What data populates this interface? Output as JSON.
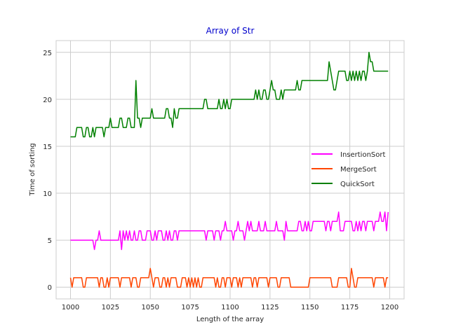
{
  "chart_data": {
    "type": "line",
    "title": "Array of Str",
    "xlabel": "Length of the array",
    "ylabel": "Time of sorting",
    "xlim": [
      991,
      1209
    ],
    "ylim": [
      -1.25,
      26.25
    ],
    "xticks": [
      1000,
      1025,
      1050,
      1075,
      1100,
      1125,
      1150,
      1175,
      1200
    ],
    "yticks": [
      0,
      5,
      10,
      15,
      20,
      25
    ],
    "grid": true,
    "legend_position": "center-right",
    "x_start": 1000,
    "series": [
      {
        "name": "InsertionSort",
        "color": "#ff00ff",
        "values": [
          5,
          5,
          5,
          5,
          5,
          5,
          5,
          5,
          5,
          5,
          5,
          5,
          5,
          5,
          5,
          4,
          5,
          5,
          6,
          5,
          5,
          5,
          5,
          5,
          5,
          5,
          5,
          5,
          5,
          5,
          5,
          6,
          4,
          6,
          5,
          6,
          5,
          6,
          5,
          5,
          6,
          5,
          5,
          6,
          6,
          5,
          5,
          5,
          6,
          6,
          6,
          5,
          5,
          6,
          5,
          6,
          6,
          6,
          5,
          5,
          6,
          5,
          6,
          5,
          5,
          6,
          6,
          5,
          6,
          6,
          6,
          6,
          6,
          6,
          6,
          6,
          6,
          6,
          6,
          6,
          6,
          6,
          6,
          6,
          6,
          5,
          6,
          6,
          6,
          6,
          5,
          6,
          6,
          6,
          5,
          6,
          6,
          7,
          6,
          6,
          6,
          6,
          5,
          6,
          6,
          7,
          6,
          6,
          6,
          5,
          6,
          7,
          6,
          7,
          6,
          6,
          6,
          6,
          7,
          6,
          6,
          6,
          7,
          6,
          6,
          6,
          6,
          6,
          6,
          7,
          6,
          6,
          6,
          6,
          5,
          7,
          6,
          6,
          6,
          6,
          6,
          6,
          6,
          7,
          7,
          6,
          6,
          7,
          6,
          7,
          6,
          6,
          7,
          7,
          7,
          7,
          7,
          7,
          7,
          7,
          6,
          7,
          7,
          6,
          7,
          7,
          7,
          7,
          8,
          6,
          6,
          6,
          7,
          7,
          7,
          7,
          7,
          6,
          6,
          7,
          6,
          7,
          6,
          7,
          7,
          6,
          7,
          7,
          7,
          7,
          6,
          7,
          7,
          7,
          8,
          7,
          7,
          8,
          6,
          8
        ]
      },
      {
        "name": "MergeSort",
        "color": "#ff4500",
        "values": [
          1,
          0,
          1,
          1,
          1,
          1,
          1,
          1,
          0,
          0,
          1,
          1,
          1,
          1,
          1,
          1,
          1,
          1,
          0,
          1,
          1,
          0,
          0,
          1,
          0,
          1,
          1,
          1,
          1,
          1,
          1,
          0,
          1,
          1,
          1,
          1,
          1,
          1,
          0,
          1,
          1,
          1,
          0,
          0,
          1,
          1,
          1,
          1,
          1,
          1,
          2,
          1,
          0,
          1,
          1,
          1,
          0,
          0,
          1,
          1,
          0,
          1,
          0,
          1,
          1,
          1,
          1,
          0,
          0,
          0,
          1,
          1,
          1,
          0,
          1,
          0,
          1,
          0,
          1,
          0,
          1,
          0,
          0,
          1,
          1,
          1,
          1,
          1,
          1,
          1,
          1,
          0,
          1,
          0,
          0,
          1,
          1,
          0,
          1,
          1,
          1,
          0,
          1,
          1,
          1,
          0,
          1,
          0,
          1,
          1,
          1,
          1,
          1,
          1,
          0,
          1,
          1,
          0,
          1,
          1,
          1,
          1,
          1,
          1,
          0,
          1,
          1,
          1,
          1,
          1,
          0,
          0,
          1,
          1,
          1,
          1,
          1,
          1,
          0,
          0,
          0,
          0,
          0,
          0,
          0,
          0,
          0,
          0,
          0,
          0,
          1,
          1,
          1,
          1,
          1,
          1,
          1,
          1,
          1,
          1,
          1,
          1,
          1,
          1,
          0,
          0,
          0,
          0,
          1,
          1,
          1,
          1,
          1,
          1,
          0,
          0,
          2,
          1,
          0,
          0,
          1,
          1,
          1,
          1,
          1,
          1,
          1,
          1,
          1,
          1,
          0,
          1,
          1,
          1,
          1,
          1,
          1,
          0,
          1,
          1
        ]
      },
      {
        "name": "QuickSort",
        "color": "#008000",
        "values": [
          16,
          16,
          16,
          16,
          17,
          17,
          17,
          17,
          16,
          16,
          17,
          17,
          16,
          16,
          17,
          16,
          17,
          17,
          17,
          17,
          17,
          16,
          17,
          17,
          17,
          18,
          17,
          17,
          17,
          17,
          17,
          18,
          18,
          17,
          17,
          17,
          18,
          18,
          17,
          17,
          17,
          22,
          18,
          18,
          17,
          18,
          18,
          18,
          18,
          18,
          18,
          19,
          18,
          18,
          18,
          18,
          18,
          18,
          18,
          18,
          19,
          19,
          18,
          18,
          17,
          19,
          18,
          18,
          19,
          19,
          19,
          19,
          19,
          19,
          19,
          19,
          19,
          19,
          19,
          19,
          19,
          19,
          19,
          19,
          20,
          20,
          19,
          19,
          19,
          19,
          19,
          19,
          19,
          20,
          19,
          19,
          20,
          19,
          20,
          19,
          19,
          20,
          20,
          20,
          20,
          20,
          20,
          20,
          20,
          20,
          20,
          20,
          20,
          20,
          20,
          20,
          21,
          20,
          21,
          20,
          20,
          21,
          21,
          20,
          20,
          21,
          22,
          21,
          21,
          20,
          20,
          20,
          21,
          20,
          21,
          21,
          21,
          21,
          21,
          21,
          21,
          21,
          22,
          21,
          21,
          22,
          22,
          22,
          22,
          22,
          22,
          22,
          22,
          22,
          22,
          22,
          22,
          22,
          22,
          22,
          22,
          22,
          24,
          23,
          22,
          21,
          21,
          22,
          23,
          23,
          23,
          23,
          23,
          22,
          22,
          23,
          22,
          23,
          22,
          23,
          22,
          23,
          22,
          23,
          23,
          22,
          23,
          25,
          24,
          24,
          23,
          23,
          23,
          23,
          23,
          23,
          23,
          23,
          23,
          23
        ]
      }
    ]
  }
}
